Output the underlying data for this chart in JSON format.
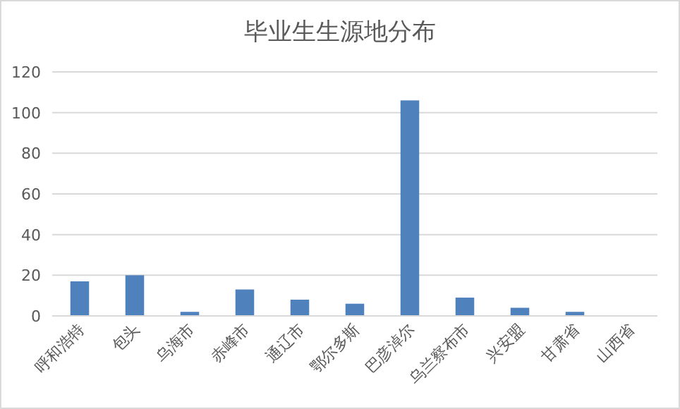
{
  "chart_data": {
    "type": "bar",
    "title": "毕业生生源地分布",
    "categories": [
      "呼和浩特",
      "包头",
      "乌海市",
      "赤峰市",
      "通辽市",
      "鄂尔多斯",
      "巴彦淖尔",
      "乌兰察布市",
      "兴安盟",
      "甘肃省",
      "山西省"
    ],
    "values": [
      17,
      20,
      2,
      13,
      8,
      6,
      106,
      9,
      4,
      2,
      0
    ],
    "color": "#4f81bd",
    "ylim": [
      0,
      120
    ],
    "yticks": [
      0,
      20,
      40,
      60,
      80,
      100,
      120
    ],
    "grid": "y"
  }
}
